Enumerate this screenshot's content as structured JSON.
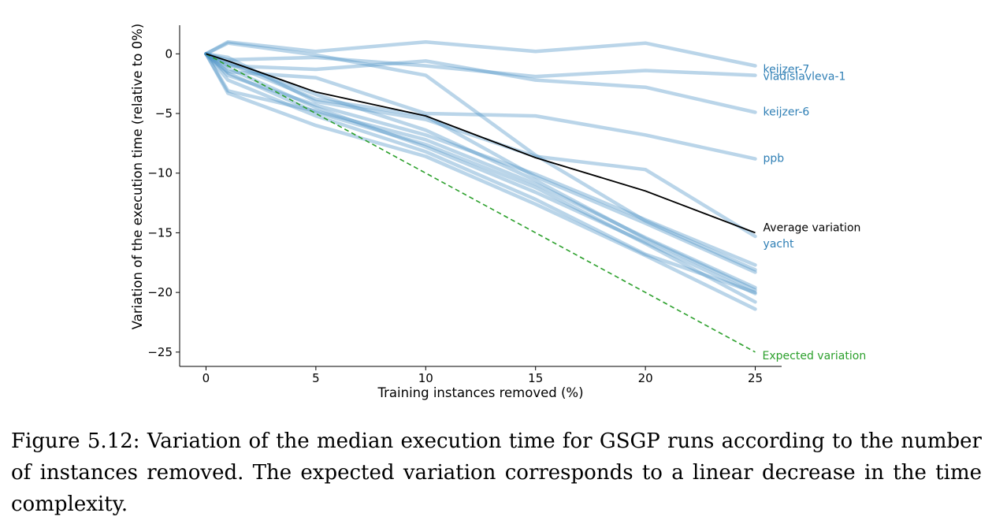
{
  "chart_data": {
    "type": "line",
    "title": "",
    "xlabel": "Training instances removed (%)",
    "ylabel": "Variation of the execution time (relative to 0%)",
    "x": [
      0,
      1,
      5,
      10,
      15,
      20,
      25
    ],
    "xticks": [
      0,
      5,
      10,
      15,
      20,
      25
    ],
    "yticks": [
      0,
      -5,
      -10,
      -15,
      -20,
      -25
    ],
    "xtick_labels": [
      "0",
      "5",
      "10",
      "15",
      "20",
      "25"
    ],
    "ytick_labels": [
      "0",
      "−5",
      "−10",
      "−15",
      "−20",
      "−25"
    ],
    "xlim": [
      -1.2,
      26.2
    ],
    "ylim": [
      -26.2,
      2.4
    ],
    "grid": false,
    "series_color": "#4a90c4",
    "average_color": "#000000",
    "expected_color": "#2ca02c",
    "series": [
      {
        "name": "keijzer-7",
        "labeled": true,
        "values": [
          0,
          1.0,
          0.2,
          1.0,
          0.2,
          0.9,
          -1.0
        ]
      },
      {
        "name": "vladislavleva-1",
        "labeled": true,
        "values": [
          0,
          -0.5,
          -0.3,
          -1.0,
          -1.9,
          -1.4,
          -1.8
        ]
      },
      {
        "name": "keijzer-6",
        "labeled": true,
        "values": [
          0,
          -1.0,
          -1.3,
          -0.6,
          -2.2,
          -2.8,
          -4.9
        ]
      },
      {
        "name": "ppb",
        "labeled": true,
        "values": [
          0,
          -1.5,
          -2.0,
          -5.0,
          -5.2,
          -6.8,
          -8.8
        ]
      },
      {
        "name": "yacht",
        "labeled": true,
        "values": [
          0,
          -0.3,
          -4.0,
          -5.5,
          -8.6,
          -9.7,
          -15.3
        ]
      },
      {
        "name": "",
        "labeled": false,
        "values": [
          0,
          0.9,
          -0.1,
          -1.8,
          -8.5,
          -14.0,
          -18.1
        ]
      },
      {
        "name": "",
        "labeled": false,
        "values": [
          0,
          -0.8,
          -3.8,
          -5.2,
          -10.3,
          -14.2,
          -18.3
        ]
      },
      {
        "name": "",
        "labeled": false,
        "values": [
          0,
          -1.8,
          -4.3,
          -6.8,
          -10.1,
          -13.9,
          -17.7
        ]
      },
      {
        "name": "",
        "labeled": false,
        "values": [
          0,
          -3.1,
          -4.8,
          -7.2,
          -10.9,
          -15.4,
          -19.6
        ]
      },
      {
        "name": "",
        "labeled": false,
        "values": [
          0,
          -1.2,
          -4.5,
          -7.8,
          -11.6,
          -15.8,
          -20.1
        ]
      },
      {
        "name": "",
        "labeled": false,
        "values": [
          0,
          -2.2,
          -5.2,
          -8.2,
          -12.2,
          -16.8,
          -20.0
        ]
      },
      {
        "name": "",
        "labeled": false,
        "values": [
          0,
          -3.3,
          -6.0,
          -8.6,
          -12.6,
          -16.9,
          -21.4
        ]
      },
      {
        "name": "",
        "labeled": false,
        "values": [
          0,
          -1.6,
          -4.9,
          -7.6,
          -11.2,
          -15.9,
          -20.8
        ]
      },
      {
        "name": "",
        "labeled": false,
        "values": [
          0,
          -0.7,
          -3.4,
          -6.4,
          -10.6,
          -15.5,
          -19.8
        ]
      }
    ],
    "average": {
      "name": "Average variation",
      "values": [
        0,
        -0.6,
        -3.2,
        -5.2,
        -8.7,
        -11.5,
        -15.0
      ]
    },
    "expected": {
      "name": "Expected variation",
      "values": [
        0,
        -1,
        -5,
        -10,
        -15,
        -20,
        -25
      ]
    }
  },
  "caption": "Figure 5.12: Variation of the median execution time for GSGP runs according to the number of instances removed. The expected variation corresponds to a linear decrease in the time complexity."
}
